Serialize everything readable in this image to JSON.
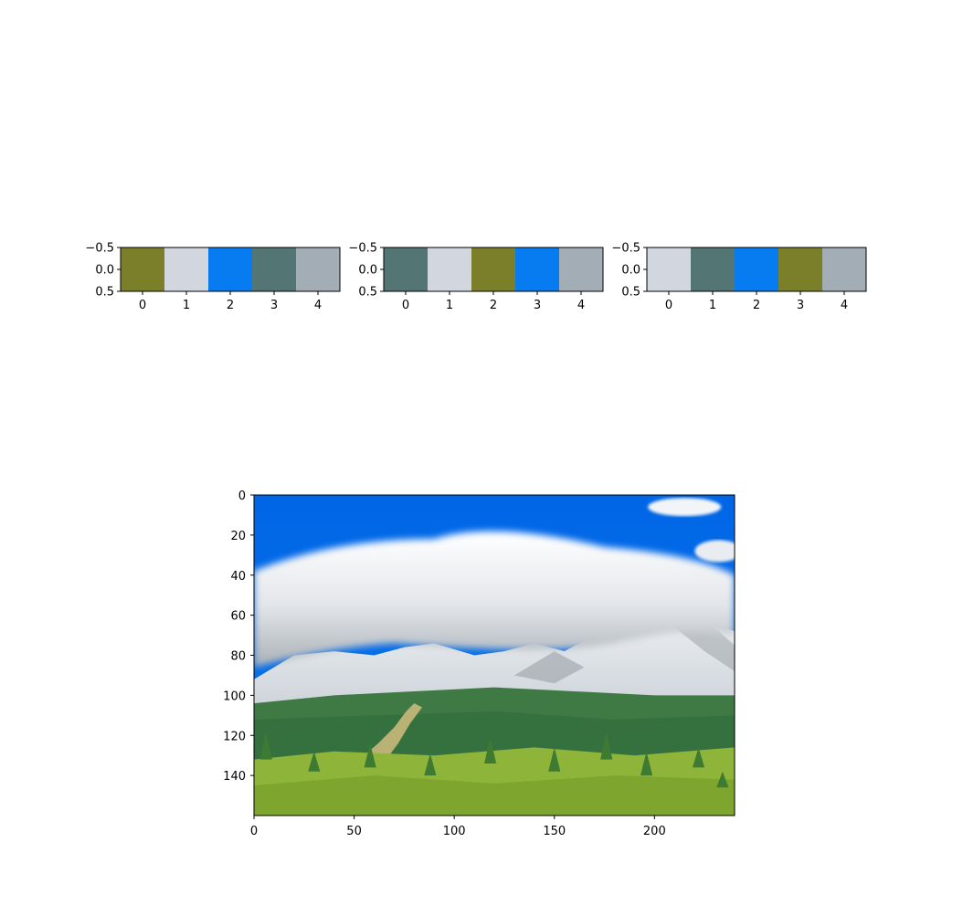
{
  "chart_data": [
    {
      "type": "heatmap",
      "title": "",
      "xlabel": "",
      "ylabel": "",
      "x_ticks": [
        "0",
        "1",
        "2",
        "3",
        "4"
      ],
      "y_ticks": [
        "−0.5",
        "0.0",
        "0.5"
      ],
      "xlim": [
        -0.5,
        4.5
      ],
      "ylim": [
        0.5,
        -0.5
      ],
      "colors": [
        "#7b7f2a",
        "#d2d7df",
        "#067cf0",
        "#537573",
        "#a3adb6"
      ]
    },
    {
      "type": "heatmap",
      "title": "",
      "xlabel": "",
      "ylabel": "",
      "x_ticks": [
        "0",
        "1",
        "2",
        "3",
        "4"
      ],
      "y_ticks": [
        "−0.5",
        "0.0",
        "0.5"
      ],
      "xlim": [
        -0.5,
        4.5
      ],
      "ylim": [
        0.5,
        -0.5
      ],
      "colors": [
        "#537573",
        "#d2d7df",
        "#7b7f2a",
        "#067cf0",
        "#a3adb6"
      ]
    },
    {
      "type": "heatmap",
      "title": "",
      "xlabel": "",
      "ylabel": "",
      "x_ticks": [
        "0",
        "1",
        "2",
        "3",
        "4"
      ],
      "y_ticks": [
        "−0.5",
        "0.0",
        "0.5"
      ],
      "xlim": [
        -0.5,
        4.5
      ],
      "ylim": [
        0.5,
        -0.5
      ],
      "colors": [
        "#d2d7df",
        "#537573",
        "#067cf0",
        "#7b7f2a",
        "#a3adb6"
      ]
    },
    {
      "type": "image",
      "title": "",
      "xlabel": "",
      "ylabel": "",
      "x_ticks": [
        "0",
        "50",
        "100",
        "150",
        "200"
      ],
      "y_ticks": [
        "0",
        "20",
        "40",
        "60",
        "80",
        "100",
        "120",
        "140"
      ],
      "xlim": [
        0,
        240
      ],
      "ylim": [
        160,
        0
      ],
      "palette": {
        "sky": "#0873ea",
        "cloud": "#e2e5e9",
        "cloud_shadow": "#a9b0b6",
        "snow": "#eef1f4",
        "rock": "#8d949a",
        "forest": "#3f7a45",
        "meadow": "#8fb43a",
        "trail": "#c9b97a"
      }
    }
  ]
}
